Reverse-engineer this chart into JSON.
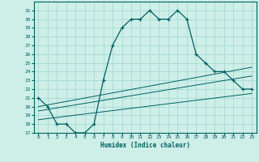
{
  "xlabel": "Humidex (Indice chaleur)",
  "bg_color": "#ceeee8",
  "line_color": "#006060",
  "grid_color": "#9dd8d0",
  "xlim": [
    -0.5,
    23.5
  ],
  "ylim": [
    17,
    32
  ],
  "yticks": [
    17,
    18,
    19,
    20,
    21,
    22,
    23,
    24,
    25,
    26,
    27,
    28,
    29,
    30,
    31
  ],
  "xticks": [
    0,
    1,
    2,
    3,
    4,
    5,
    6,
    7,
    8,
    9,
    10,
    11,
    12,
    13,
    14,
    15,
    16,
    17,
    18,
    19,
    20,
    21,
    22,
    23
  ],
  "series1_x": [
    0,
    1,
    2,
    3,
    4,
    5,
    6,
    7,
    8,
    9,
    10,
    11,
    12,
    13,
    14,
    15,
    16,
    17,
    18,
    19,
    20,
    21,
    22,
    23
  ],
  "series1_y": [
    21,
    20,
    18,
    18,
    17,
    17,
    18,
    23,
    27,
    29,
    30,
    30,
    31,
    30,
    30,
    31,
    30,
    26,
    25,
    24,
    24,
    23,
    22,
    22
  ],
  "series2_x": [
    0,
    23
  ],
  "series2_y": [
    18.5,
    21.5
  ],
  "series3_x": [
    0,
    23
  ],
  "series3_y": [
    19.5,
    23.5
  ],
  "series4_x": [
    0,
    23
  ],
  "series4_y": [
    20.0,
    24.5
  ]
}
